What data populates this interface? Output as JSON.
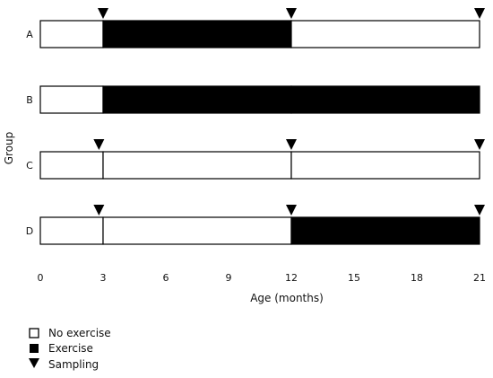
{
  "axis": {
    "x_title": "Age (months)",
    "y_title": "Group",
    "ticks": [
      "0",
      "3",
      "6",
      "9",
      "12",
      "15",
      "18",
      "21"
    ],
    "range": [
      0,
      21
    ]
  },
  "colors": {
    "exercise": "#000000",
    "no_exercise": "#ffffff",
    "outline": "#000000"
  },
  "groups": [
    {
      "label": "A",
      "segments": [
        {
          "start": 0,
          "end": 3,
          "type": "no_exercise"
        },
        {
          "start": 3,
          "end": 12,
          "type": "exercise"
        },
        {
          "start": 12,
          "end": 21,
          "type": "no_exercise"
        }
      ],
      "sampling": [
        3,
        12,
        21
      ]
    },
    {
      "label": "B",
      "segments": [
        {
          "start": 0,
          "end": 3,
          "type": "no_exercise"
        },
        {
          "start": 3,
          "end": 12,
          "type": "exercise"
        },
        {
          "start": 12,
          "end": 21,
          "type": "exercise"
        }
      ],
      "sampling": []
    },
    {
      "label": "C",
      "segments": [
        {
          "start": 0,
          "end": 3,
          "type": "no_exercise"
        },
        {
          "start": 3,
          "end": 12,
          "type": "no_exercise"
        },
        {
          "start": 12,
          "end": 21,
          "type": "no_exercise"
        }
      ],
      "sampling": [
        2.8,
        12,
        21
      ]
    },
    {
      "label": "D",
      "segments": [
        {
          "start": 0,
          "end": 3,
          "type": "no_exercise"
        },
        {
          "start": 3,
          "end": 12,
          "type": "no_exercise"
        },
        {
          "start": 12,
          "end": 21,
          "type": "exercise"
        }
      ],
      "sampling": [
        2.8,
        12,
        21
      ]
    }
  ],
  "legend": {
    "no_exercise": "No exercise",
    "exercise": "Exercise",
    "sampling": "Sampling"
  }
}
